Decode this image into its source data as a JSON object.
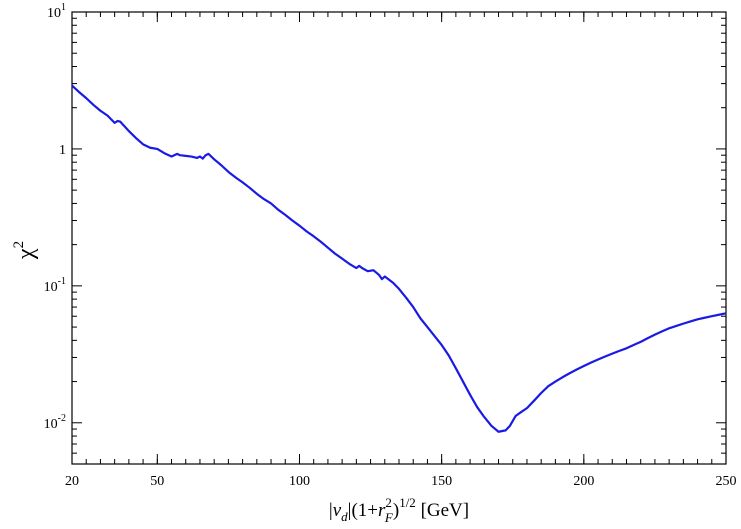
{
  "chart_data": {
    "type": "line",
    "title": "",
    "xlabel": {
      "pipe_left": "|",
      "v": "v",
      "v_sub": "d",
      "pipe_right": "|",
      "paren_open": "(1+",
      "r": "r",
      "r_sup": "2",
      "r_sub": "F",
      "paren_close": ")",
      "exp": "1/2",
      "units": " [GeV]"
    },
    "ylabel": {
      "base": "χ",
      "sup": "2"
    },
    "xlim": [
      20,
      250
    ],
    "ylim": [
      0.005,
      10
    ],
    "yscale": "log",
    "grid": false,
    "line_color": "#1a1ae6",
    "xticks": [
      {
        "value": 20,
        "label": "20"
      },
      {
        "value": 50,
        "label": "50"
      },
      {
        "value": 100,
        "label": "100"
      },
      {
        "value": 150,
        "label": "150"
      },
      {
        "value": 200,
        "label": "200"
      },
      {
        "value": 250,
        "label": "250"
      }
    ],
    "yticks": [
      {
        "value": 0.01,
        "base": "10",
        "exp": "-2"
      },
      {
        "value": 0.1,
        "base": "10",
        "exp": "-1"
      },
      {
        "value": 1,
        "base": "1",
        "exp": ""
      },
      {
        "value": 10,
        "base": "10",
        "exp": "1"
      }
    ],
    "series": [
      {
        "x": [
          20,
          22.5,
          25,
          27.5,
          30,
          32.5,
          35,
          36,
          37,
          38,
          40,
          42.5,
          45,
          47.5,
          50,
          52.5,
          55,
          57,
          58,
          60,
          62,
          64,
          65,
          66,
          67,
          68,
          70,
          72.5,
          75,
          77.5,
          80,
          82.5,
          85,
          87.5,
          90,
          92.5,
          95,
          97.5,
          100,
          102.5,
          105,
          107.5,
          110,
          112.5,
          115,
          117.5,
          120,
          121,
          122,
          124,
          126,
          127,
          128,
          129,
          130,
          131,
          133,
          135,
          137.5,
          140,
          142.5,
          145,
          147.5,
          150,
          152.5,
          155,
          157.5,
          160,
          162.5,
          165,
          167.5,
          170,
          172.5,
          174,
          176,
          178,
          180,
          182.5,
          185,
          187.5,
          190,
          192.5,
          195,
          197.5,
          200,
          202.5,
          205,
          207.5,
          210,
          212.5,
          215,
          217.5,
          220,
          222.5,
          225,
          227.5,
          230,
          232.5,
          235,
          237.5,
          240,
          242.5,
          245,
          247.5,
          250
        ],
        "y": [
          2.9,
          2.6,
          2.35,
          2.1,
          1.9,
          1.75,
          1.55,
          1.6,
          1.58,
          1.5,
          1.35,
          1.2,
          1.08,
          1.02,
          1.0,
          0.93,
          0.88,
          0.92,
          0.9,
          0.89,
          0.88,
          0.86,
          0.88,
          0.85,
          0.9,
          0.92,
          0.84,
          0.76,
          0.68,
          0.62,
          0.57,
          0.52,
          0.47,
          0.43,
          0.4,
          0.36,
          0.33,
          0.3,
          0.275,
          0.25,
          0.23,
          0.21,
          0.19,
          0.172,
          0.158,
          0.145,
          0.135,
          0.14,
          0.135,
          0.128,
          0.13,
          0.125,
          0.12,
          0.112,
          0.117,
          0.113,
          0.105,
          0.095,
          0.082,
          0.07,
          0.058,
          0.05,
          0.043,
          0.037,
          0.031,
          0.025,
          0.02,
          0.016,
          0.013,
          0.011,
          0.0095,
          0.0086,
          0.0088,
          0.0095,
          0.0112,
          0.012,
          0.0128,
          0.0145,
          0.0165,
          0.0185,
          0.02,
          0.0215,
          0.023,
          0.0245,
          0.026,
          0.0275,
          0.029,
          0.0305,
          0.032,
          0.0335,
          0.035,
          0.037,
          0.039,
          0.0415,
          0.044,
          0.0465,
          0.049,
          0.051,
          0.053,
          0.055,
          0.057,
          0.0585,
          0.06,
          0.0615,
          0.063
        ]
      }
    ]
  }
}
